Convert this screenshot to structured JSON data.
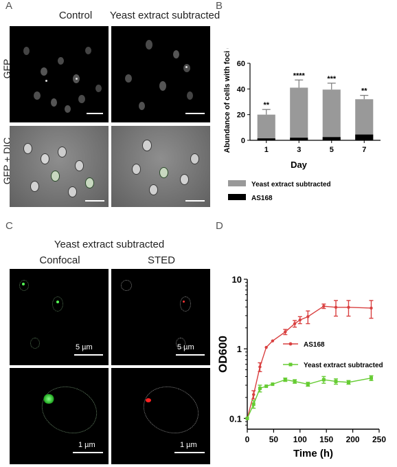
{
  "panels": {
    "A": {
      "label": "A",
      "columns": [
        "Control",
        "Yeast extract subtracted"
      ],
      "rows": [
        "GFP",
        "GFP + DIC"
      ]
    },
    "B": {
      "label": "B"
    },
    "C": {
      "label": "C",
      "title": "Yeast extract subtracted",
      "columns": [
        "Confocal",
        "STED"
      ],
      "scalebars": {
        "top": "5 µm",
        "bottom": "1 µm"
      }
    },
    "D": {
      "label": "D"
    }
  },
  "chart_data": [
    {
      "type": "bar",
      "stacked": true,
      "ylabel": "Abundance of cells with foci (%)",
      "xlabel": "Day",
      "categories": [
        "1",
        "3",
        "5",
        "7"
      ],
      "ylim": [
        0,
        60
      ],
      "yticks": [
        0,
        20,
        40,
        60
      ],
      "series": [
        {
          "name": "Yeast extract subtracted",
          "values": [
            20,
            41,
            39.5,
            32
          ],
          "errors": [
            4,
            6,
            5,
            3
          ],
          "color": "#999999"
        },
        {
          "name": "AS168",
          "values": [
            1.5,
            2,
            2.5,
            4.5
          ],
          "color": "#000000"
        }
      ],
      "significance": [
        "**",
        "****",
        "***",
        "**"
      ],
      "legend": "bottom"
    },
    {
      "type": "line",
      "yscale": "log",
      "ylabel": "OD600",
      "xlabel": "Time (h)",
      "xlim": [
        0,
        250
      ],
      "xticks": [
        0,
        50,
        100,
        150,
        200,
        250
      ],
      "ylim": [
        0.07,
        10
      ],
      "yticks": [
        0.1,
        1,
        10
      ],
      "series": [
        {
          "name": "AS168",
          "color": "#d94040",
          "x": [
            0,
            12,
            24,
            36,
            48,
            72,
            90,
            100,
            115,
            145,
            168,
            192,
            235
          ],
          "y": [
            0.1,
            0.22,
            0.55,
            1.05,
            1.3,
            1.75,
            2.3,
            2.6,
            2.9,
            4.1,
            3.95,
            3.95,
            3.85
          ],
          "err": [
            0,
            0.03,
            0.08,
            0,
            0,
            0.15,
            0.25,
            0.3,
            0.6,
            0.3,
            1.0,
            1.0,
            1.1
          ]
        },
        {
          "name": "Yeast extract subtracted",
          "color": "#66cc33",
          "x": [
            0,
            12,
            24,
            36,
            48,
            72,
            90,
            115,
            145,
            168,
            192,
            235
          ],
          "y": [
            0.1,
            0.16,
            0.27,
            0.29,
            0.31,
            0.36,
            0.34,
            0.31,
            0.36,
            0.34,
            0.33,
            0.38
          ],
          "err": [
            0,
            0.02,
            0.03,
            0,
            0,
            0.02,
            0.02,
            0.02,
            0.04,
            0.03,
            0.02,
            0.03
          ]
        }
      ],
      "legend": "center-right"
    }
  ]
}
